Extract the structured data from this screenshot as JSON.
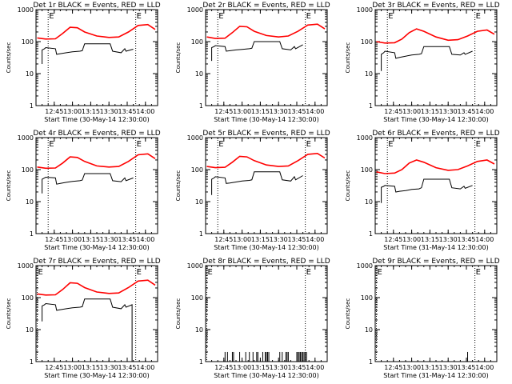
{
  "figure": {
    "y_tick_labels": [
      "1",
      "10",
      "100",
      "1000"
    ],
    "x_tick_labels": [
      "12:45",
      "13:00",
      "13:15",
      "13:30",
      "13:45",
      "14:00"
    ],
    "colors": {
      "events": "#000000",
      "lld": "#ff0000",
      "axes": "#000000"
    }
  },
  "chart_data": [
    {
      "type": "line",
      "title": "Det 1r BLACK = Events, RED = LLD",
      "xlabel": "Start Time (30-May-14 12:30:00)",
      "ylabel": "Counts/sec",
      "xlim": [
        "12:30",
        "14:10"
      ],
      "ylim": [
        1,
        1000
      ],
      "y_scale": "log",
      "grid": false,
      "markers": [
        {
          "label": "E",
          "time": "12:40"
        },
        {
          "label": "E",
          "time": "13:52"
        }
      ],
      "series": [
        {
          "role": "lld",
          "x": [
            "12:31",
            "12:38",
            "12:46",
            "12:52",
            "12:58",
            "13:04",
            "13:10",
            "13:20",
            "13:30",
            "13:38",
            "13:46",
            "13:54",
            "14:02",
            "14:08"
          ],
          "values": [
            130,
            120,
            122,
            180,
            280,
            270,
            200,
            150,
            135,
            140,
            200,
            320,
            340,
            240
          ]
        },
        {
          "role": "events",
          "x": [
            "12:35",
            "12:35",
            "12:37",
            "12:38",
            "12:46",
            "12:47",
            "12:50",
            "12:55",
            "13:00",
            "13:06",
            "13:08",
            "13:10",
            "13:15",
            "13:20",
            "13:25",
            "13:31",
            "13:33",
            "13:40",
            "13:43",
            "13:44",
            "13:50"
          ],
          "values": [
            20,
            55,
            60,
            65,
            60,
            40,
            42,
            45,
            48,
            50,
            52,
            85,
            85,
            85,
            85,
            85,
            50,
            45,
            60,
            50,
            58
          ]
        }
      ]
    },
    {
      "type": "line",
      "title": "Det 2r BLACK = Events, RED = LLD",
      "xlabel": "Start Time (30-May-14 12:30:00)",
      "ylabel": "Counts/sec",
      "xlim": [
        "12:30",
        "14:10"
      ],
      "ylim": [
        1,
        1000
      ],
      "y_scale": "log",
      "grid": false,
      "markers": [
        {
          "label": "E",
          "time": "12:40"
        },
        {
          "label": "E",
          "time": "13:52"
        }
      ],
      "series": [
        {
          "role": "lld",
          "x": [
            "12:31",
            "12:38",
            "12:46",
            "12:52",
            "12:58",
            "13:04",
            "13:10",
            "13:20",
            "13:30",
            "13:38",
            "13:46",
            "13:54",
            "14:02",
            "14:08"
          ],
          "values": [
            140,
            125,
            128,
            190,
            300,
            290,
            210,
            155,
            140,
            150,
            210,
            330,
            350,
            250
          ]
        },
        {
          "role": "events",
          "x": [
            "12:35",
            "12:35",
            "12:37",
            "12:38",
            "12:46",
            "12:47",
            "12:50",
            "12:55",
            "13:00",
            "13:06",
            "13:08",
            "13:10",
            "13:15",
            "13:20",
            "13:25",
            "13:31",
            "13:33",
            "13:40",
            "13:43",
            "13:44",
            "13:50"
          ],
          "values": [
            25,
            65,
            70,
            75,
            70,
            50,
            52,
            55,
            57,
            60,
            62,
            100,
            100,
            100,
            100,
            100,
            60,
            55,
            70,
            60,
            80
          ]
        }
      ]
    },
    {
      "type": "line",
      "title": "Det 3r BLACK = Events, RED = LLD",
      "xlabel": "Start Time (30-May-14 12:30:00)",
      "ylabel": "Counts/sec",
      "xlim": [
        "12:30",
        "14:10"
      ],
      "ylim": [
        1,
        1000
      ],
      "y_scale": "log",
      "grid": false,
      "markers": [
        {
          "label": "E",
          "time": "12:40"
        },
        {
          "label": "E",
          "time": "13:52"
        }
      ],
      "series": [
        {
          "role": "lld",
          "x": [
            "12:31",
            "12:38",
            "12:46",
            "12:52",
            "12:58",
            "13:04",
            "13:10",
            "13:20",
            "13:30",
            "13:38",
            "13:46",
            "13:54",
            "14:02",
            "14:08"
          ],
          "values": [
            100,
            90,
            92,
            120,
            190,
            250,
            210,
            140,
            110,
            115,
            150,
            210,
            230,
            170
          ]
        },
        {
          "role": "events",
          "x": [
            "12:35",
            "12:35",
            "12:37",
            "12:38",
            "12:46",
            "12:47",
            "12:50",
            "12:55",
            "13:00",
            "13:06",
            "13:08",
            "13:10",
            "13:15",
            "13:20",
            "13:25",
            "13:31",
            "13:33",
            "13:40",
            "13:43",
            "13:44",
            "13:50"
          ],
          "values": [
            12,
            40,
            45,
            50,
            45,
            30,
            32,
            35,
            38,
            40,
            42,
            70,
            70,
            70,
            70,
            70,
            40,
            38,
            45,
            40,
            50
          ]
        }
      ]
    },
    {
      "type": "line",
      "title": "Det 4r BLACK = Events, RED = LLD",
      "xlabel": "Start Time (30-May-14 12:30:00)",
      "ylabel": "Counts/sec",
      "xlim": [
        "12:30",
        "14:10"
      ],
      "ylim": [
        1,
        1000
      ],
      "y_scale": "log",
      "grid": false,
      "markers": [
        {
          "label": "E",
          "time": "12:40"
        },
        {
          "label": "E",
          "time": "13:52"
        }
      ],
      "series": [
        {
          "role": "lld",
          "x": [
            "12:31",
            "12:38",
            "12:46",
            "12:52",
            "12:58",
            "13:04",
            "13:10",
            "13:20",
            "13:30",
            "13:38",
            "13:46",
            "13:54",
            "14:02",
            "14:08"
          ],
          "values": [
            120,
            110,
            112,
            160,
            250,
            240,
            180,
            130,
            120,
            125,
            180,
            290,
            310,
            220
          ]
        },
        {
          "role": "events",
          "x": [
            "12:35",
            "12:35",
            "12:37",
            "12:38",
            "12:46",
            "12:47",
            "12:50",
            "12:55",
            "13:00",
            "13:06",
            "13:08",
            "13:10",
            "13:15",
            "13:20",
            "13:25",
            "13:31",
            "13:33",
            "13:40",
            "13:43",
            "13:44",
            "13:50"
          ],
          "values": [
            18,
            50,
            55,
            58,
            55,
            35,
            37,
            40,
            43,
            45,
            47,
            75,
            75,
            75,
            75,
            75,
            45,
            42,
            55,
            45,
            55
          ]
        }
      ]
    },
    {
      "type": "line",
      "title": "Det 5r BLACK = Events, RED = LLD",
      "xlabel": "Start Time (30-May-14 12:30:00)",
      "ylabel": "Counts/sec",
      "xlim": [
        "12:30",
        "14:10"
      ],
      "ylim": [
        1,
        1000
      ],
      "y_scale": "log",
      "grid": false,
      "markers": [
        {
          "label": "E",
          "time": "12:40"
        },
        {
          "label": "E",
          "time": "13:52"
        }
      ],
      "series": [
        {
          "role": "lld",
          "x": [
            "12:31",
            "12:38",
            "12:46",
            "12:52",
            "12:58",
            "13:04",
            "13:10",
            "13:20",
            "13:30",
            "13:38",
            "13:46",
            "13:54",
            "14:02",
            "14:08"
          ],
          "values": [
            125,
            115,
            118,
            170,
            260,
            250,
            190,
            140,
            125,
            130,
            190,
            300,
            320,
            230
          ]
        },
        {
          "role": "events",
          "x": [
            "12:35",
            "12:35",
            "12:37",
            "12:38",
            "12:46",
            "12:47",
            "12:50",
            "12:55",
            "13:00",
            "13:06",
            "13:08",
            "13:10",
            "13:15",
            "13:20",
            "13:25",
            "13:31",
            "13:33",
            "13:40",
            "13:43",
            "13:44",
            "13:50"
          ],
          "values": [
            16,
            50,
            55,
            60,
            55,
            37,
            38,
            41,
            44,
            46,
            48,
            85,
            85,
            85,
            85,
            85,
            48,
            44,
            60,
            48,
            65
          ]
        }
      ]
    },
    {
      "type": "line",
      "title": "Det 6r BLACK = Events, RED = LLD",
      "xlabel": "Start Time (31-May-14 12:30:00)",
      "ylabel": "Counts/sec",
      "xlim": [
        "12:30",
        "14:10"
      ],
      "ylim": [
        1,
        1000
      ],
      "y_scale": "log",
      "grid": false,
      "markers": [
        {
          "label": "E",
          "time": "12:40"
        },
        {
          "label": "E",
          "time": "13:52"
        }
      ],
      "series": [
        {
          "role": "lld",
          "x": [
            "12:31",
            "12:38",
            "12:46",
            "12:52",
            "12:58",
            "13:04",
            "13:10",
            "13:20",
            "13:30",
            "13:38",
            "13:46",
            "13:54",
            "14:02",
            "14:08"
          ],
          "values": [
            85,
            75,
            78,
            100,
            160,
            200,
            170,
            115,
            95,
            100,
            130,
            180,
            200,
            150
          ]
        },
        {
          "role": "events",
          "x": [
            "12:35",
            "12:35",
            "12:37",
            "12:38",
            "12:46",
            "12:47",
            "12:50",
            "12:55",
            "13:00",
            "13:06",
            "13:08",
            "13:10",
            "13:15",
            "13:20",
            "13:25",
            "13:31",
            "13:33",
            "13:40",
            "13:43",
            "13:44",
            "13:50"
          ],
          "values": [
            9,
            28,
            30,
            32,
            30,
            20,
            21,
            22,
            24,
            25,
            27,
            50,
            50,
            50,
            50,
            50,
            27,
            25,
            30,
            26,
            32
          ]
        }
      ]
    },
    {
      "type": "line",
      "title": "Det 7r BLACK = Events, RED = LLD",
      "xlabel": "Start Time (30-May-14 12:30:00)",
      "ylabel": "Counts/sec",
      "xlim": [
        "12:30",
        "14:10"
      ],
      "ylim": [
        1,
        1000
      ],
      "y_scale": "log",
      "grid": false,
      "markers": [
        {
          "label": "E",
          "time": "12:31"
        },
        {
          "label": "E",
          "time": "13:52"
        }
      ],
      "series": [
        {
          "role": "lld",
          "x": [
            "12:31",
            "12:38",
            "12:46",
            "12:52",
            "12:58",
            "13:04",
            "13:10",
            "13:20",
            "13:30",
            "13:38",
            "13:46",
            "13:54",
            "14:02",
            "14:08"
          ],
          "values": [
            130,
            120,
            122,
            180,
            290,
            280,
            205,
            150,
            135,
            140,
            205,
            330,
            350,
            245
          ]
        },
        {
          "role": "events",
          "x": [
            "12:35",
            "12:35",
            "12:37",
            "12:38",
            "12:46",
            "12:47",
            "12:50",
            "12:55",
            "13:00",
            "13:06",
            "13:08",
            "13:10",
            "13:15",
            "13:20",
            "13:25",
            "13:31",
            "13:33",
            "13:40",
            "13:43",
            "13:44",
            "13:49",
            "13:49"
          ],
          "values": [
            18,
            55,
            60,
            65,
            60,
            40,
            42,
            45,
            48,
            50,
            52,
            90,
            90,
            90,
            90,
            90,
            50,
            45,
            60,
            50,
            60,
            1
          ]
        }
      ]
    },
    {
      "type": "line",
      "title": "Det 8r BLACK = Events, RED = LLD",
      "xlabel": "Start Time (30-May-14 12:30:00)",
      "ylabel": "Counts/sec",
      "xlim": [
        "12:30",
        "14:10"
      ],
      "ylim": [
        1,
        1000
      ],
      "y_scale": "log",
      "grid": false,
      "markers": [
        {
          "label": "E",
          "time": "12:31"
        },
        {
          "label": "E",
          "time": "13:52"
        }
      ],
      "series": [
        {
          "role": "events_spikes",
          "value": 2,
          "x": [
            "12:46",
            "12:48",
            "12:52",
            "12:53",
            "12:58",
            "13:03",
            "13:06",
            "13:09",
            "13:12",
            "13:13",
            "13:17",
            "13:19",
            "13:20",
            "13:21",
            "13:22",
            "13:31",
            "13:33",
            "13:36",
            "13:37",
            "13:38",
            "13:45",
            "13:46",
            "13:47",
            "13:48",
            "13:49",
            "13:50",
            "13:51",
            "13:52",
            "13:53"
          ]
        }
      ]
    },
    {
      "type": "line",
      "title": "Det 9r BLACK = Events, RED = LLD",
      "xlabel": "Start Time (31-May-14 12:30:00)",
      "ylabel": "Counts/sec",
      "xlim": [
        "12:30",
        "14:10"
      ],
      "ylim": [
        1,
        1000
      ],
      "y_scale": "log",
      "grid": false,
      "markers": [
        {
          "label": "E",
          "time": "12:31"
        },
        {
          "label": "E",
          "time": "13:52"
        }
      ],
      "series": [
        {
          "role": "events_spikes",
          "value": 2,
          "x": [
            "13:46"
          ]
        }
      ]
    }
  ]
}
